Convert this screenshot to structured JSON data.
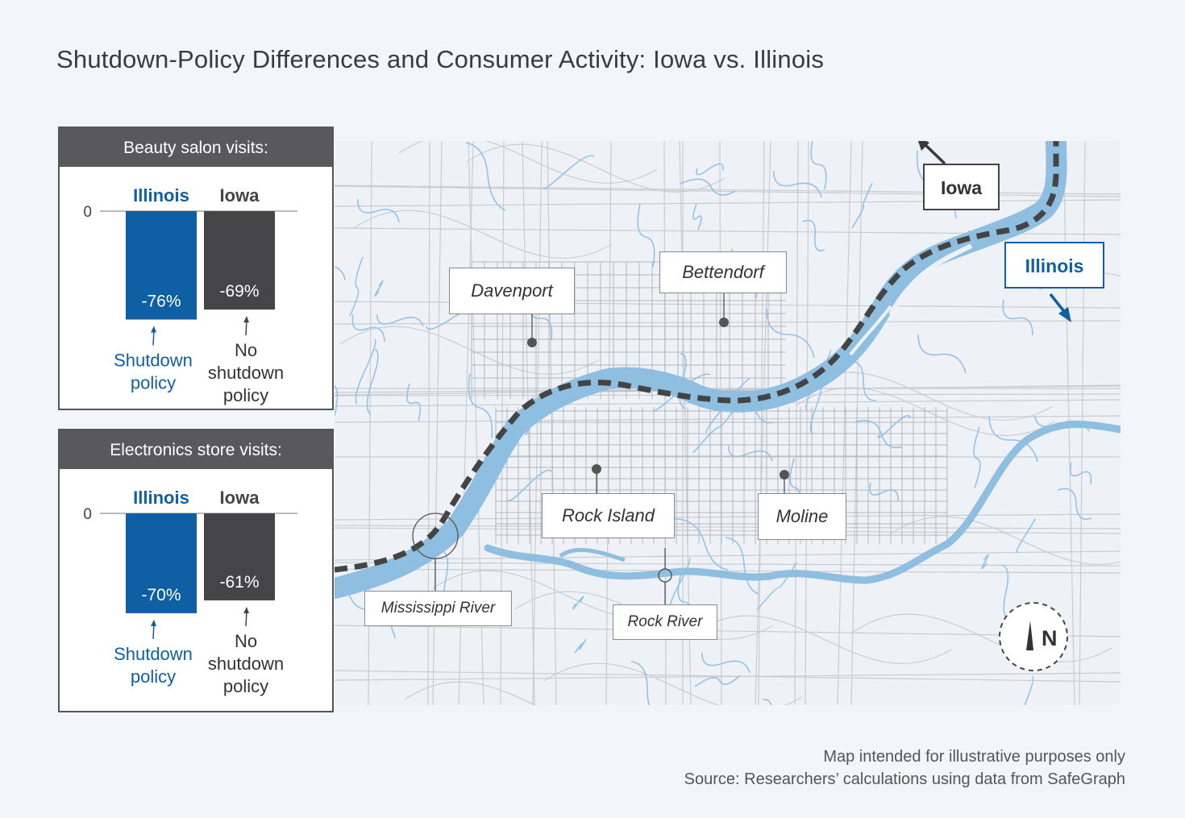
{
  "title": "Shutdown-Policy Differences and Consumer Activity: Iowa vs. Illinois",
  "colors": {
    "illinois": "#0f5fa5",
    "iowa": "#454548",
    "river": "#8ebee0",
    "road": "#c6c9cd",
    "stream": "#8fbde4",
    "header": "#59595b"
  },
  "chart_data": [
    {
      "type": "bar",
      "title": "Beauty salon visits:",
      "categories": [
        "Illinois",
        "Iowa"
      ],
      "values": [
        -76,
        -69
      ],
      "value_labels": [
        "-76%",
        "-69%"
      ],
      "ytick": "0",
      "annotations": [
        "Shutdown policy",
        "No shutdown policy"
      ]
    },
    {
      "type": "bar",
      "title": "Electronics store visits:",
      "categories": [
        "Illinois",
        "Iowa"
      ],
      "values": [
        -70,
        -61
      ],
      "value_labels": [
        "-70%",
        "-61%"
      ],
      "ytick": "0",
      "annotations": [
        "Shutdown policy",
        "No shutdown policy"
      ]
    }
  ],
  "map": {
    "cities": [
      "Davenport",
      "Bettendorf",
      "Rock Island",
      "Moline"
    ],
    "rivers": [
      "Mississippi River",
      "Rock River"
    ],
    "states": [
      "Iowa",
      "Illinois"
    ],
    "compass": "N"
  },
  "footer": {
    "line1": "Map intended for illustrative purposes only",
    "line2": "Source: Researchers’ calculations using data from SafeGraph"
  }
}
